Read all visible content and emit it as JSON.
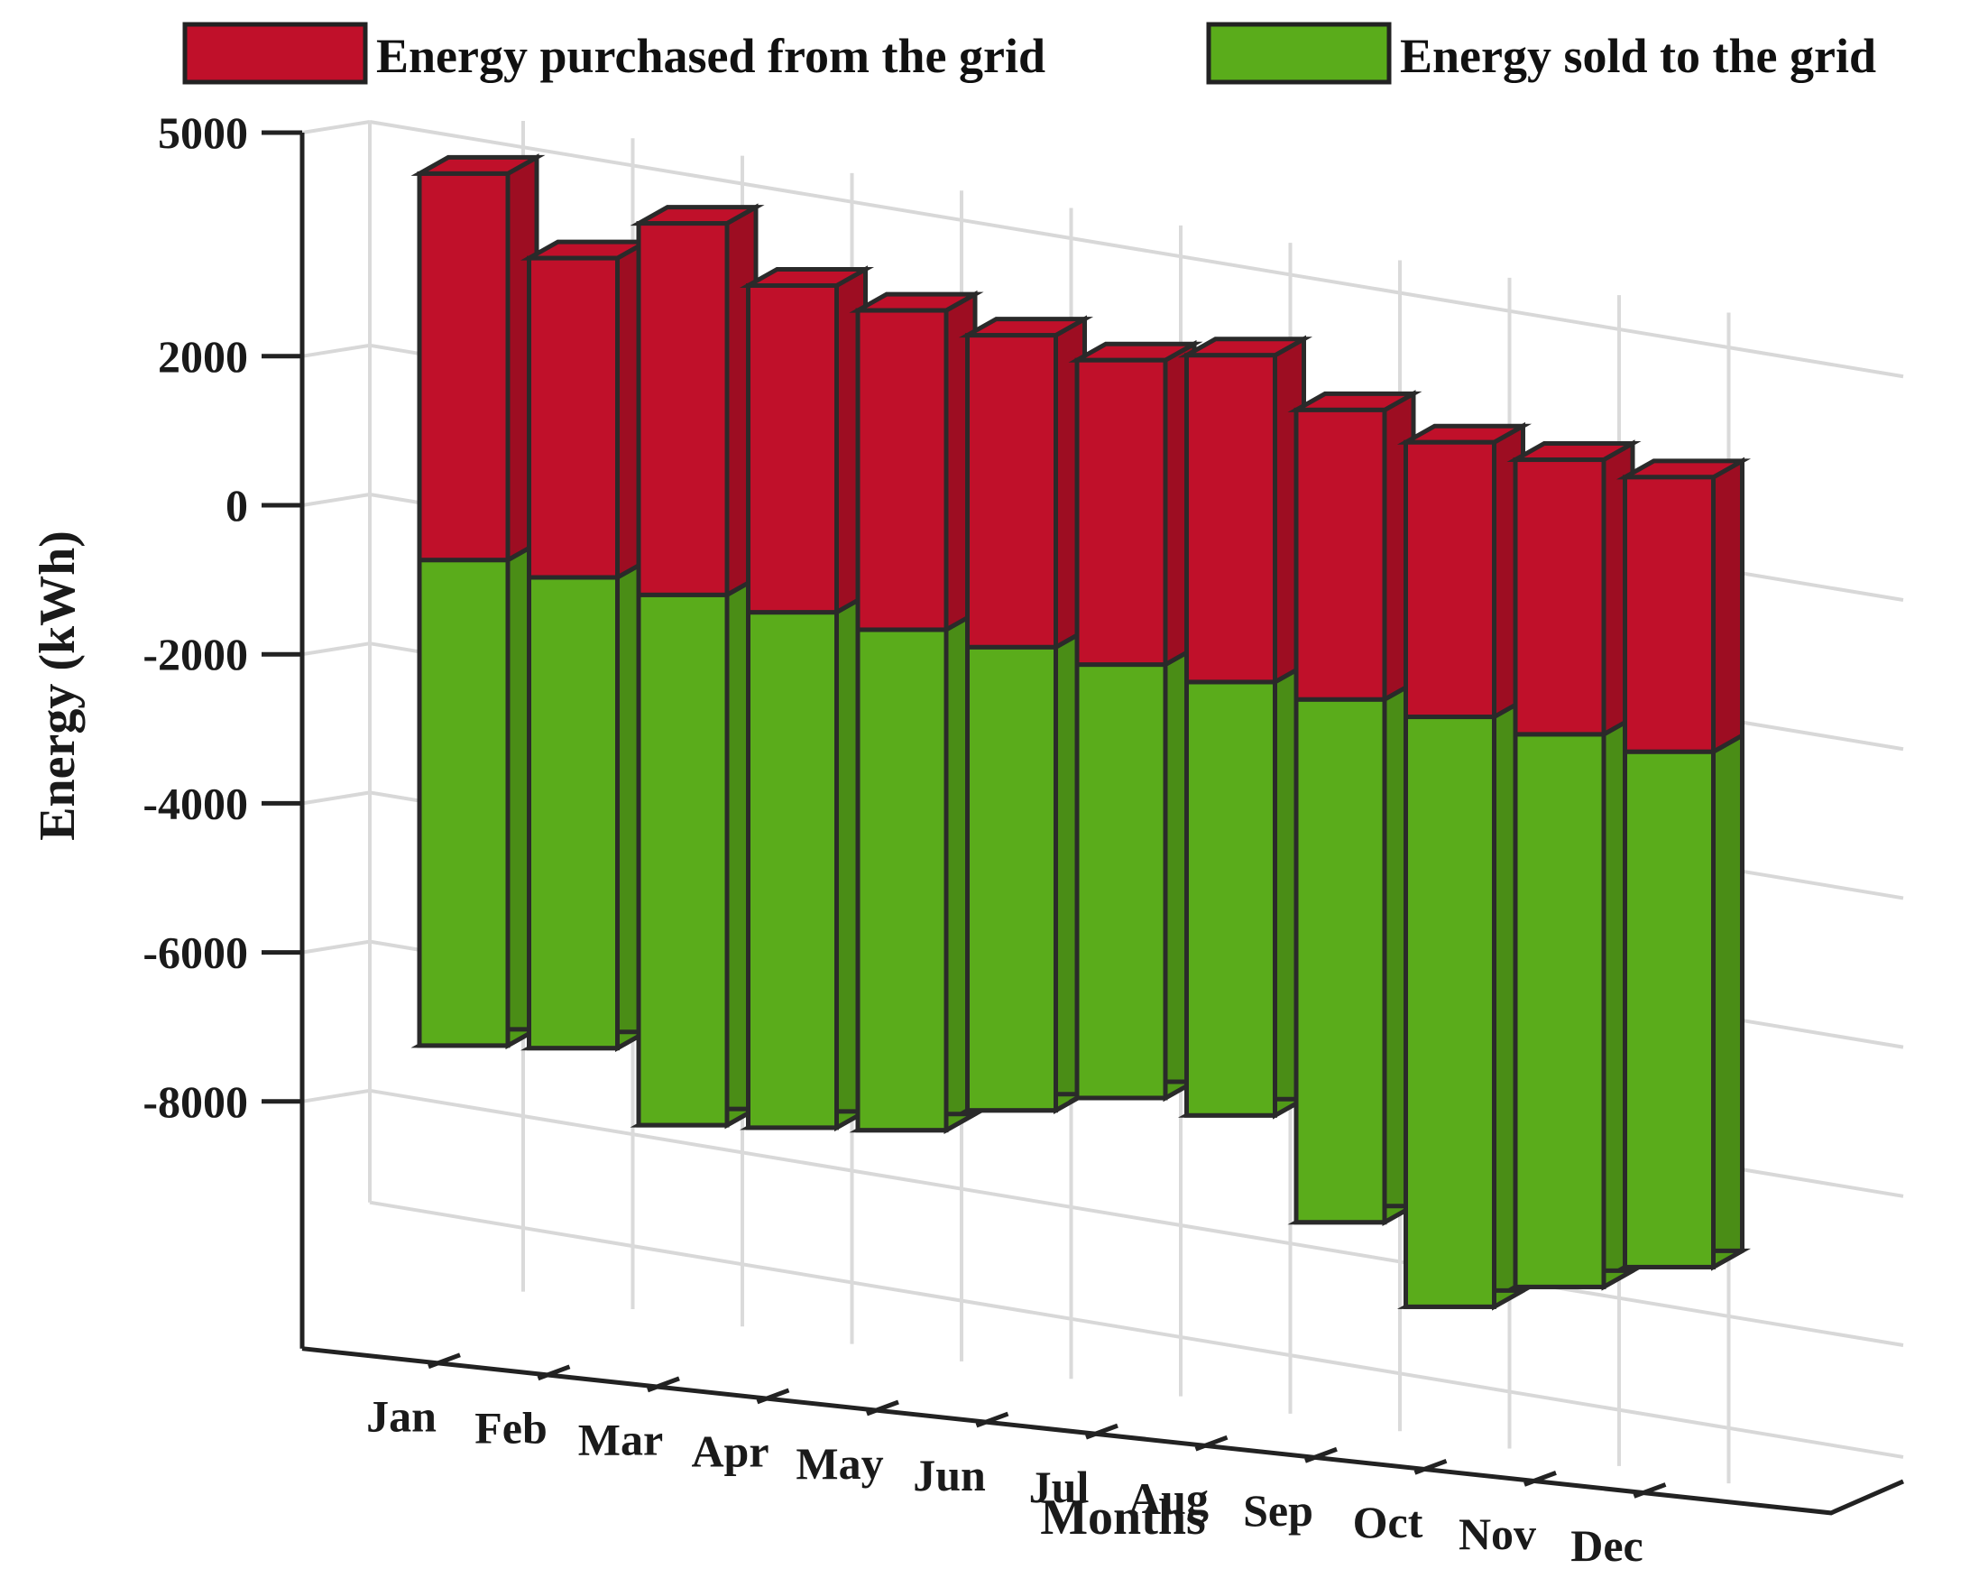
{
  "chart_data": {
    "type": "bar",
    "subtype": "3d-stacked",
    "categories": [
      "Jan",
      "Feb",
      "Mar",
      "Apr",
      "May",
      "Jun",
      "Jul",
      "Aug",
      "Sep",
      "Oct",
      "Nov",
      "Dec"
    ],
    "series": [
      {
        "name": "Energy purchased from the grid",
        "color": "#c0102a",
        "values": [
          4700,
          3800,
          4500,
          3900,
          3800,
          3700,
          3600,
          3900,
          3400,
          3200,
          3200,
          3200
        ]
      },
      {
        "name": "Energy sold to the grid",
        "color": "#5aac1b",
        "values": [
          -7000,
          -6800,
          -7600,
          -7400,
          -7200,
          -6700,
          -6300,
          -6300,
          -7500,
          -8400,
          -7900,
          -7400
        ]
      }
    ],
    "yticks": [
      5000,
      2000,
      0,
      -2000,
      -4000,
      -6000,
      -8000
    ],
    "ylim": [
      -9500,
      5000
    ],
    "xlabel": "Months",
    "ylabel": "Energy (kWh)",
    "legend": "top",
    "grid": true
  }
}
